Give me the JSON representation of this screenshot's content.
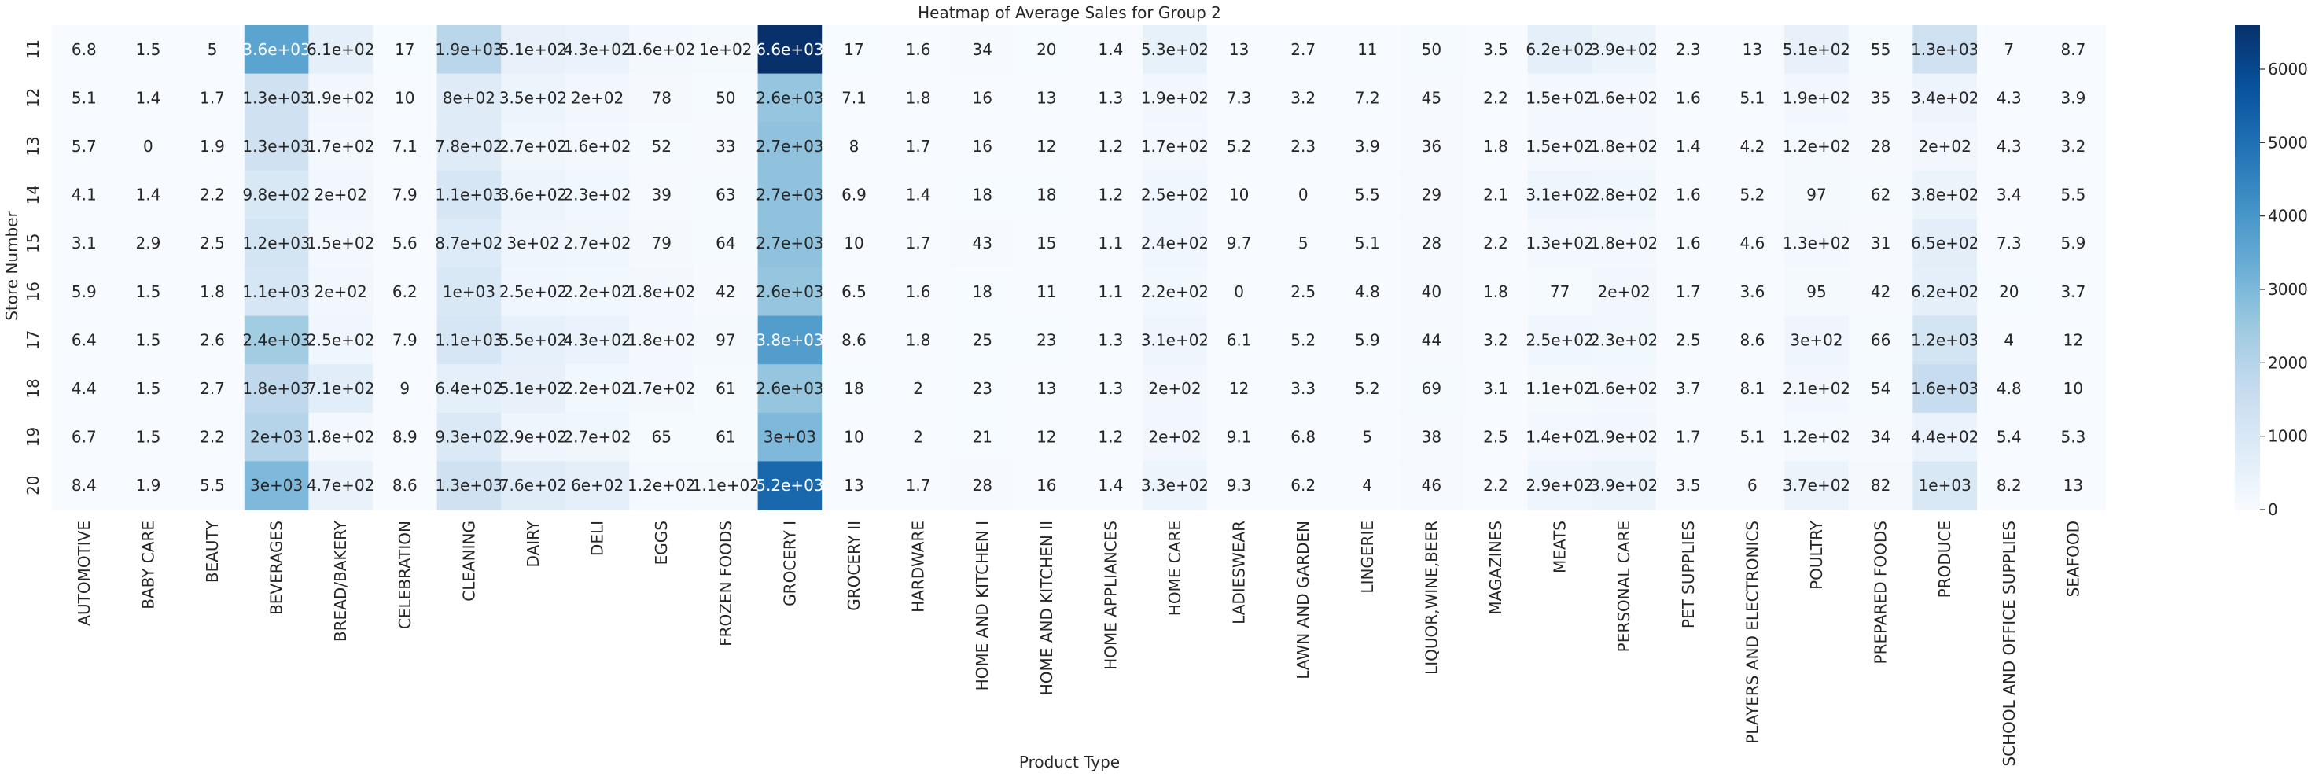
{
  "chart_data": {
    "type": "heatmap",
    "title": "Heatmap of Average Sales for Group 2",
    "xlabel": "Product Type",
    "ylabel": "Store Number",
    "colormap": "Blues",
    "colorbar": {
      "min": 0,
      "max": 6600,
      "ticks": [
        0,
        1000,
        2000,
        3000,
        4000,
        5000,
        6000
      ]
    },
    "rows": [
      "11",
      "12",
      "13",
      "14",
      "15",
      "16",
      "17",
      "18",
      "19",
      "20"
    ],
    "columns": [
      "AUTOMOTIVE",
      "BABY CARE",
      "BEAUTY",
      "BEVERAGES",
      "BREAD/BAKERY",
      "CELEBRATION",
      "CLEANING",
      "DAIRY",
      "DELI",
      "EGGS",
      "FROZEN FOODS",
      "GROCERY I",
      "GROCERY II",
      "HARDWARE",
      "HOME AND KITCHEN I",
      "HOME AND KITCHEN II",
      "HOME APPLIANCES",
      "HOME CARE",
      "LADIESWEAR",
      "LAWN AND GARDEN",
      "LINGERIE",
      "LIQUOR,WINE,BEER",
      "MAGAZINES",
      "MEATS",
      "PERSONAL CARE",
      "PET SUPPLIES",
      "PLAYERS AND ELECTRONICS",
      "POULTRY",
      "PREPARED FOODS",
      "PRODUCE",
      "SCHOOL AND OFFICE SUPPLIES",
      "SEAFOOD"
    ],
    "labels": [
      [
        "6.8",
        "1.5",
        "5",
        "3.6e+03",
        "6.1e+02",
        "17",
        "1.9e+03",
        "5.1e+02",
        "4.3e+02",
        "1.6e+02",
        "1e+02",
        "6.6e+03",
        "17",
        "1.6",
        "34",
        "20",
        "1.4",
        "5.3e+02",
        "13",
        "2.7",
        "11",
        "50",
        "3.5",
        "6.2e+02",
        "3.9e+02",
        "2.3",
        "13",
        "5.1e+02",
        "55",
        "1.3e+03",
        "7",
        "8.7"
      ],
      [
        "5.1",
        "1.4",
        "1.7",
        "1.3e+03",
        "1.9e+02",
        "10",
        "8e+02",
        "3.5e+02",
        "2e+02",
        "78",
        "50",
        "2.6e+03",
        "7.1",
        "1.8",
        "16",
        "13",
        "1.3",
        "1.9e+02",
        "7.3",
        "3.2",
        "7.2",
        "45",
        "2.2",
        "1.5e+02",
        "1.6e+02",
        "1.6",
        "5.1",
        "1.9e+02",
        "35",
        "3.4e+02",
        "4.3",
        "3.9"
      ],
      [
        "5.7",
        "0",
        "1.9",
        "1.3e+03",
        "1.7e+02",
        "7.1",
        "7.8e+02",
        "2.7e+02",
        "1.6e+02",
        "52",
        "33",
        "2.7e+03",
        "8",
        "1.7",
        "16",
        "12",
        "1.2",
        "1.7e+02",
        "5.2",
        "2.3",
        "3.9",
        "36",
        "1.8",
        "1.5e+02",
        "1.8e+02",
        "1.4",
        "4.2",
        "1.2e+02",
        "28",
        "2e+02",
        "4.3",
        "3.2"
      ],
      [
        "4.1",
        "1.4",
        "2.2",
        "9.8e+02",
        "2e+02",
        "7.9",
        "1.1e+03",
        "3.6e+02",
        "2.3e+02",
        "39",
        "63",
        "2.7e+03",
        "6.9",
        "1.4",
        "18",
        "18",
        "1.2",
        "2.5e+02",
        "10",
        "0",
        "5.5",
        "29",
        "2.1",
        "3.1e+02",
        "2.8e+02",
        "1.6",
        "5.2",
        "97",
        "62",
        "3.8e+02",
        "3.4",
        "5.5"
      ],
      [
        "3.1",
        "2.9",
        "2.5",
        "1.2e+03",
        "1.5e+02",
        "5.6",
        "8.7e+02",
        "3e+02",
        "2.7e+02",
        "79",
        "64",
        "2.7e+03",
        "10",
        "1.7",
        "43",
        "15",
        "1.1",
        "2.4e+02",
        "9.7",
        "5",
        "5.1",
        "28",
        "2.2",
        "1.3e+02",
        "1.8e+02",
        "1.6",
        "4.6",
        "1.3e+02",
        "31",
        "6.5e+02",
        "7.3",
        "5.9"
      ],
      [
        "5.9",
        "1.5",
        "1.8",
        "1.1e+03",
        "2e+02",
        "6.2",
        "1e+03",
        "2.5e+02",
        "2.2e+02",
        "1.8e+02",
        "42",
        "2.6e+03",
        "6.5",
        "1.6",
        "18",
        "11",
        "1.1",
        "2.2e+02",
        "0",
        "2.5",
        "4.8",
        "40",
        "1.8",
        "77",
        "2e+02",
        "1.7",
        "3.6",
        "95",
        "42",
        "6.2e+02",
        "20",
        "3.7"
      ],
      [
        "6.4",
        "1.5",
        "2.6",
        "2.4e+03",
        "2.5e+02",
        "7.9",
        "1.1e+03",
        "5.5e+02",
        "4.3e+02",
        "1.8e+02",
        "97",
        "3.8e+03",
        "8.6",
        "1.8",
        "25",
        "23",
        "1.3",
        "3.1e+02",
        "6.1",
        "5.2",
        "5.9",
        "44",
        "3.2",
        "2.5e+02",
        "2.3e+02",
        "2.5",
        "8.6",
        "3e+02",
        "66",
        "1.2e+03",
        "4",
        "12"
      ],
      [
        "4.4",
        "1.5",
        "2.7",
        "1.8e+03",
        "7.1e+02",
        "9",
        "6.4e+02",
        "5.1e+02",
        "2.2e+02",
        "1.7e+02",
        "61",
        "2.6e+03",
        "18",
        "2",
        "23",
        "13",
        "1.3",
        "2e+02",
        "12",
        "3.3",
        "5.2",
        "69",
        "3.1",
        "1.1e+02",
        "1.6e+02",
        "3.7",
        "8.1",
        "2.1e+02",
        "54",
        "1.6e+03",
        "4.8",
        "10"
      ],
      [
        "6.7",
        "1.5",
        "2.2",
        "2e+03",
        "1.8e+02",
        "8.9",
        "9.3e+02",
        "2.9e+02",
        "2.7e+02",
        "65",
        "61",
        "3e+03",
        "10",
        "2",
        "21",
        "12",
        "1.2",
        "2e+02",
        "9.1",
        "6.8",
        "5",
        "38",
        "2.5",
        "1.4e+02",
        "1.9e+02",
        "1.7",
        "5.1",
        "1.2e+02",
        "34",
        "4.4e+02",
        "5.4",
        "5.3"
      ],
      [
        "8.4",
        "1.9",
        "5.5",
        "3e+03",
        "4.7e+02",
        "8.6",
        "1.3e+03",
        "7.6e+02",
        "6e+02",
        "1.2e+02",
        "1.1e+02",
        "5.2e+03",
        "13",
        "1.7",
        "28",
        "16",
        "1.4",
        "3.3e+02",
        "9.3",
        "6.2",
        "4",
        "46",
        "2.2",
        "2.9e+02",
        "3.9e+02",
        "3.5",
        "6",
        "3.7e+02",
        "82",
        "1e+03",
        "8.2",
        "13"
      ]
    ]
  }
}
